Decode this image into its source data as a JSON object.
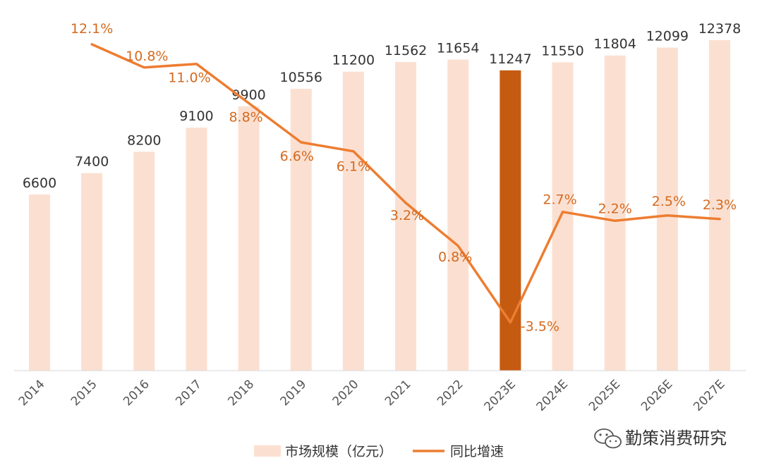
{
  "colors": {
    "bar": "#fbe0d1",
    "bar_highlight": "#c55a11",
    "line": "#ed7d31",
    "line_label": "#d46a1f",
    "text": "#333333",
    "axis": "#d9d9d9"
  },
  "chart_data": {
    "type": "bar",
    "categories": [
      "2014",
      "2015",
      "2016",
      "2017",
      "2018",
      "2019",
      "2020",
      "2021",
      "2022",
      "2023E",
      "2024E",
      "2025E",
      "2026E",
      "2027E"
    ],
    "series": [
      {
        "name": "市场规模（亿元）",
        "type": "bar",
        "values": [
          6600,
          7400,
          8200,
          9100,
          9900,
          10556,
          11200,
          11562,
          11654,
          11247,
          11550,
          11804,
          12099,
          12378
        ],
        "labels": [
          "6600",
          "7400",
          "8200",
          "9100",
          "9900",
          "10556",
          "11200",
          "11562",
          "11654",
          "11247",
          "11550",
          "11804",
          "12099",
          "12378"
        ],
        "highlight_index": 9
      },
      {
        "name": "同比增速",
        "type": "line",
        "x": [
          "2015",
          "2016",
          "2017",
          "2018",
          "2019",
          "2020",
          "2021",
          "2022",
          "2023E",
          "2024E",
          "2025E",
          "2026E",
          "2027E"
        ],
        "values": [
          12.1,
          10.8,
          11.0,
          8.8,
          6.6,
          6.1,
          3.2,
          0.8,
          -3.5,
          2.7,
          2.2,
          2.5,
          2.3
        ],
        "labels": [
          "12.1%",
          "10.8%",
          "11.0%",
          "8.8%",
          "6.6%",
          "6.1%",
          "3.2%",
          "0.8%",
          "-3.5%",
          "2.7%",
          "2.2%",
          "2.5%",
          "2.3%"
        ]
      }
    ],
    "ylim_bar": [
      0,
      14000
    ],
    "ylim_line": [
      -5,
      13
    ],
    "legend": {
      "position": "bottom",
      "items": [
        "市场规模（亿元）",
        "同比增速"
      ]
    },
    "grid": false
  },
  "watermark": {
    "text": "勤策消费研究",
    "icon": "wechat-icon"
  }
}
